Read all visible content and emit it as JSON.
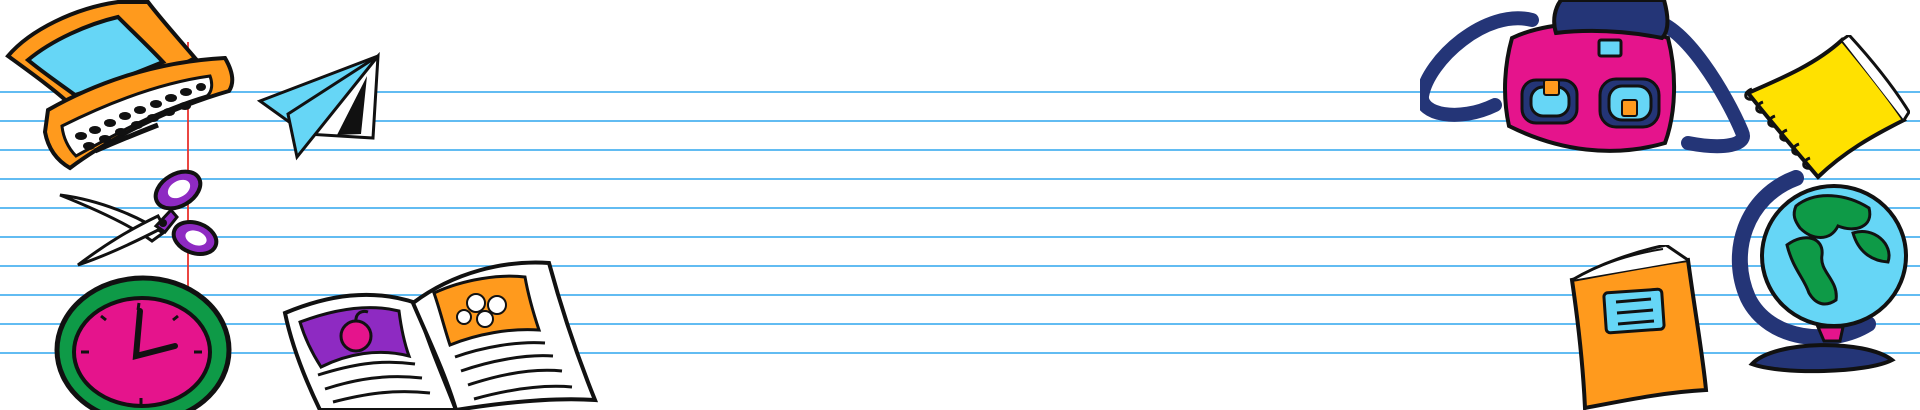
{
  "colors": {
    "background": "#ffffff",
    "ruled_line": "#2ea6ee",
    "margin_line": "#e8322c",
    "outline": "#111111",
    "orange": "#ff9a1d",
    "cyan": "#66d6f6",
    "magenta": "#e5148c",
    "purple": "#8e2ac2",
    "green": "#0e9a47",
    "navy": "#243577",
    "yellow": "#ffe100"
  },
  "doodles": [
    "laptop-icon",
    "paper-plane-icon",
    "scissors-icon",
    "clock-icon",
    "open-book-icon",
    "backpack-icon",
    "spiral-notebook-icon",
    "globe-icon",
    "orange-book-icon"
  ]
}
